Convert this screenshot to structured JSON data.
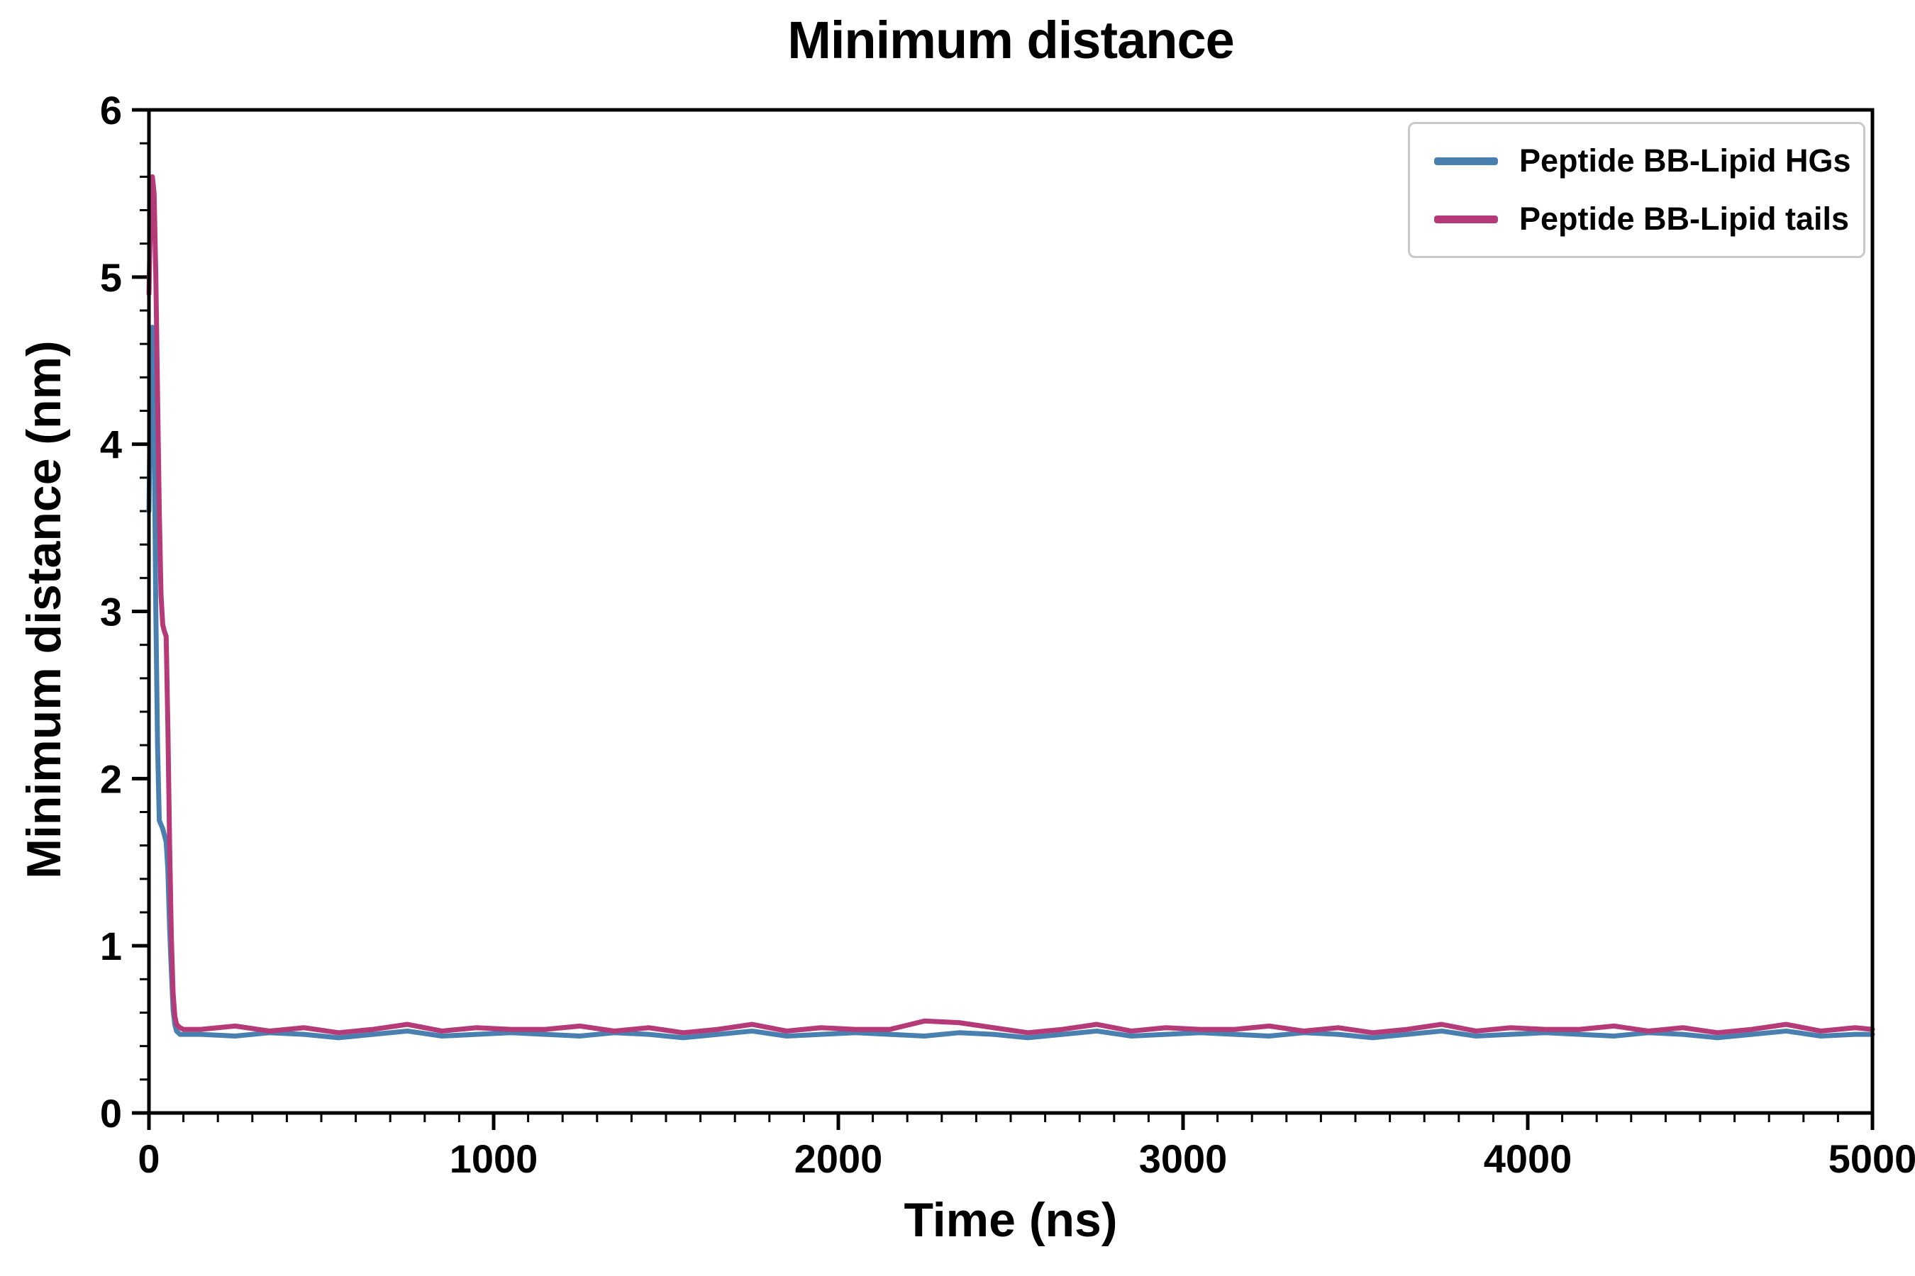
{
  "chart_data": {
    "type": "line",
    "title": "Minimum distance",
    "xlabel": "Time (ns)",
    "ylabel": "Minimum distance (nm)",
    "xlim": [
      0,
      5000
    ],
    "ylim": [
      0,
      6
    ],
    "x_ticks": [
      0,
      1000,
      2000,
      3000,
      4000,
      5000
    ],
    "y_ticks": [
      0,
      1,
      2,
      3,
      4,
      5,
      6
    ],
    "x_minor_step": 100,
    "y_minor_step": 0.2,
    "grid": false,
    "legend_position": "upper right",
    "colors": {
      "axis": "#000000",
      "legend_border": "#c9c9c9",
      "background": "#ffffff"
    },
    "series": [
      {
        "name": "Peptide BB-Lipid HGs",
        "color": "#4a80b0",
        "x": [
          0,
          5,
          10,
          15,
          20,
          25,
          30,
          40,
          50,
          55,
          60,
          65,
          70,
          75,
          80,
          90,
          100,
          120,
          150,
          250,
          350,
          450,
          550,
          650,
          750,
          850,
          950,
          1050,
          1150,
          1250,
          1350,
          1450,
          1550,
          1650,
          1750,
          1850,
          1950,
          2050,
          2150,
          2250,
          2350,
          2450,
          2550,
          2650,
          2750,
          2850,
          2950,
          3050,
          3150,
          3250,
          3350,
          3450,
          3550,
          3650,
          3750,
          3850,
          3950,
          4050,
          4150,
          4250,
          4350,
          4450,
          4550,
          4650,
          4750,
          4850,
          4950,
          5000
        ],
        "y": [
          3.6,
          4.45,
          4.7,
          4.1,
          3.0,
          2.2,
          1.75,
          1.7,
          1.62,
          1.45,
          1.1,
          0.85,
          0.62,
          0.53,
          0.49,
          0.47,
          0.47,
          0.47,
          0.47,
          0.46,
          0.48,
          0.47,
          0.45,
          0.47,
          0.49,
          0.46,
          0.47,
          0.48,
          0.47,
          0.46,
          0.48,
          0.47,
          0.45,
          0.47,
          0.49,
          0.46,
          0.47,
          0.48,
          0.47,
          0.46,
          0.48,
          0.47,
          0.45,
          0.47,
          0.49,
          0.46,
          0.47,
          0.48,
          0.47,
          0.46,
          0.48,
          0.47,
          0.45,
          0.47,
          0.49,
          0.46,
          0.47,
          0.48,
          0.47,
          0.46,
          0.48,
          0.47,
          0.45,
          0.47,
          0.49,
          0.46,
          0.47,
          0.47
        ]
      },
      {
        "name": "Peptide BB-Lipid tails",
        "color": "#b53a78",
        "x": [
          0,
          5,
          10,
          15,
          20,
          25,
          30,
          35,
          40,
          45,
          50,
          55,
          60,
          65,
          70,
          75,
          80,
          90,
          100,
          120,
          150,
          250,
          350,
          450,
          550,
          650,
          750,
          850,
          950,
          1050,
          1150,
          1250,
          1350,
          1450,
          1550,
          1650,
          1750,
          1850,
          1950,
          2050,
          2150,
          2250,
          2350,
          2450,
          2550,
          2650,
          2750,
          2850,
          2950,
          3050,
          3150,
          3250,
          3350,
          3450,
          3550,
          3650,
          3750,
          3850,
          3950,
          4050,
          4150,
          4250,
          4350,
          4450,
          4550,
          4650,
          4750,
          4850,
          4950,
          5000
        ],
        "y": [
          4.9,
          5.4,
          5.6,
          5.5,
          5.0,
          4.3,
          3.6,
          3.1,
          2.92,
          2.88,
          2.85,
          2.3,
          1.6,
          1.05,
          0.72,
          0.58,
          0.53,
          0.51,
          0.5,
          0.5,
          0.5,
          0.52,
          0.49,
          0.51,
          0.48,
          0.5,
          0.53,
          0.49,
          0.51,
          0.5,
          0.5,
          0.52,
          0.49,
          0.51,
          0.48,
          0.5,
          0.53,
          0.49,
          0.51,
          0.5,
          0.5,
          0.55,
          0.54,
          0.51,
          0.48,
          0.5,
          0.53,
          0.49,
          0.51,
          0.5,
          0.5,
          0.52,
          0.49,
          0.51,
          0.48,
          0.5,
          0.53,
          0.49,
          0.51,
          0.5,
          0.5,
          0.52,
          0.49,
          0.51,
          0.48,
          0.5,
          0.53,
          0.49,
          0.51,
          0.5
        ]
      }
    ]
  }
}
